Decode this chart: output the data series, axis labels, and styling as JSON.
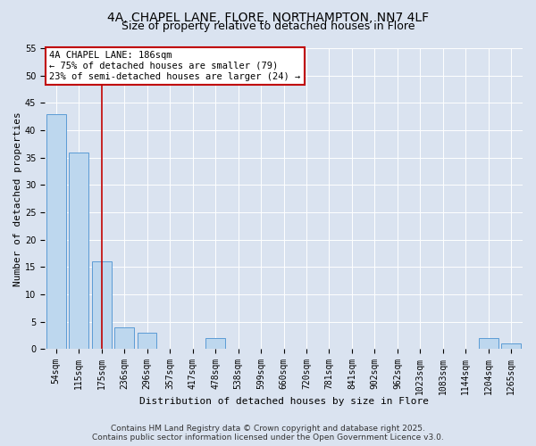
{
  "title_line1": "4A, CHAPEL LANE, FLORE, NORTHAMPTON, NN7 4LF",
  "title_line2": "Size of property relative to detached houses in Flore",
  "xlabel": "Distribution of detached houses by size in Flore",
  "ylabel": "Number of detached properties",
  "categories": [
    "54sqm",
    "115sqm",
    "175sqm",
    "236sqm",
    "296sqm",
    "357sqm",
    "417sqm",
    "478sqm",
    "538sqm",
    "599sqm",
    "660sqm",
    "720sqm",
    "781sqm",
    "841sqm",
    "902sqm",
    "962sqm",
    "1023sqm",
    "1083sqm",
    "1144sqm",
    "1204sqm",
    "1265sqm"
  ],
  "values": [
    43,
    36,
    16,
    4,
    3,
    0,
    0,
    2,
    0,
    0,
    0,
    0,
    0,
    0,
    0,
    0,
    0,
    0,
    0,
    2,
    1
  ],
  "bar_color": "#bdd7ee",
  "bar_edge_color": "#5b9bd5",
  "vline_x_index": 2,
  "vline_color": "#c00000",
  "annotation_line1": "4A CHAPEL LANE: 186sqm",
  "annotation_line2": "← 75% of detached houses are smaller (79)",
  "annotation_line3": "23% of semi-detached houses are larger (24) →",
  "annotation_box_color": "#ffffff",
  "annotation_box_edge": "#c00000",
  "ylim": [
    0,
    55
  ],
  "yticks": [
    0,
    5,
    10,
    15,
    20,
    25,
    30,
    35,
    40,
    45,
    50,
    55
  ],
  "background_color": "#dae3f0",
  "plot_bg_color": "#dae3f0",
  "footer_text": "Contains HM Land Registry data © Crown copyright and database right 2025.\nContains public sector information licensed under the Open Government Licence v3.0.",
  "title_fontsize": 10,
  "subtitle_fontsize": 9,
  "axis_label_fontsize": 8,
  "tick_fontsize": 7,
  "annotation_fontsize": 7.5,
  "footer_fontsize": 6.5
}
